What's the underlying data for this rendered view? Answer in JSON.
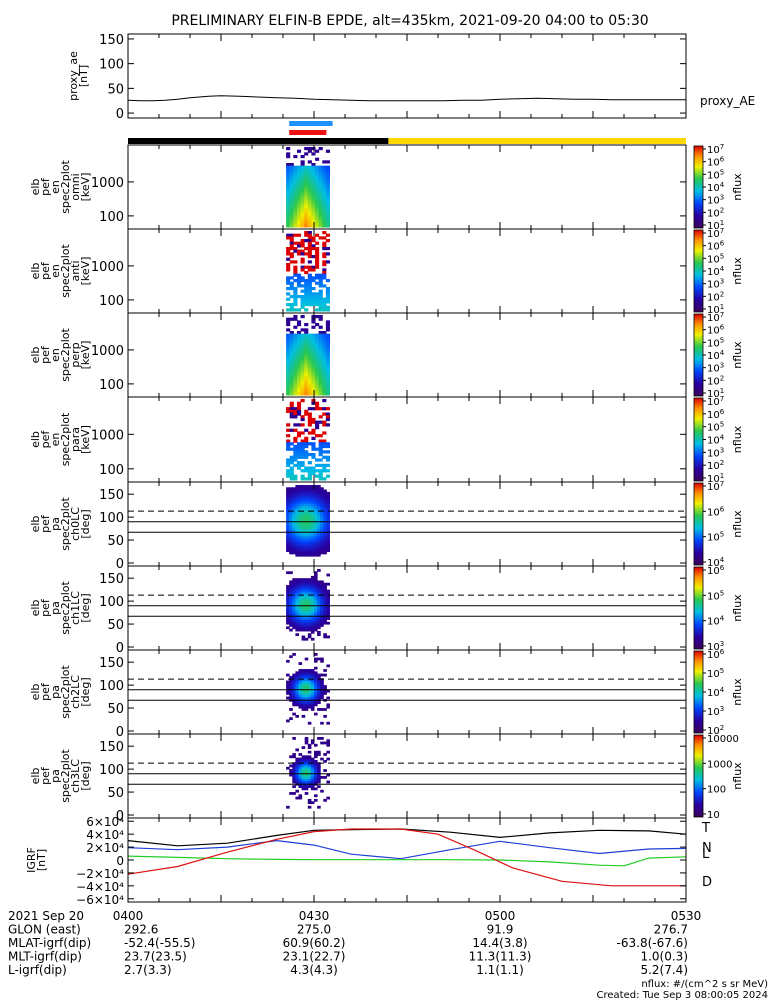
{
  "title": "PRELIMINARY ELFIN-B EPDE, alt=435km, 2021-09-20 04:00 to 05:30",
  "time": {
    "start_min": 0,
    "end_min": 90,
    "tick_labels": [
      "0400",
      "0430",
      "0500",
      "0530"
    ],
    "tick_minutes": [
      0,
      30,
      60,
      90
    ],
    "date_label": "2021 Sep 20"
  },
  "panels": [
    {
      "kind": "line",
      "ylabel_lines": [
        "proxy_ae",
        "[nT]"
      ],
      "right_label": "proxy_AE",
      "ylim": [
        -10,
        160
      ],
      "yticks": [
        0,
        50,
        100,
        150
      ],
      "ytick_labels": [
        "0",
        "50",
        "100",
        "150"
      ],
      "series_x": [
        0,
        2,
        4,
        6,
        8,
        10,
        13,
        15,
        18,
        20,
        22,
        24,
        27,
        30,
        33,
        36,
        39,
        42,
        45,
        48,
        51,
        54,
        57,
        60,
        63,
        66,
        69,
        72,
        75,
        78,
        81,
        84,
        87,
        90
      ],
      "series_y": [
        26,
        25,
        25,
        26,
        28,
        31,
        34,
        35,
        34,
        33,
        32,
        31,
        30,
        28,
        27,
        26,
        25,
        25,
        25,
        25,
        25,
        26,
        26,
        28,
        29,
        30,
        29,
        28,
        28,
        27,
        27,
        27,
        27,
        27
      ]
    },
    {
      "kind": "energy",
      "ylabel_lines": [
        "elb",
        "pef",
        "en",
        "spec2plot",
        "omni",
        "[keV]"
      ],
      "yticks": [
        "100",
        "1000"
      ],
      "cbar_labels": [
        "10^1",
        "10^2",
        "10^3",
        "10^4",
        "10^5",
        "10^6",
        "10^7"
      ],
      "cbar_unit": "nflux",
      "intensity": 1.0
    },
    {
      "kind": "energy",
      "ylabel_lines": [
        "elb",
        "pef",
        "en",
        "spec2plot",
        "anti",
        "[keV]"
      ],
      "yticks": [
        "100",
        "1000"
      ],
      "cbar_labels": [
        "10^1",
        "10^2",
        "10^3",
        "10^4",
        "10^5",
        "10^6",
        "10^7"
      ],
      "cbar_unit": "nflux",
      "intensity": 0.45
    },
    {
      "kind": "energy",
      "ylabel_lines": [
        "elb",
        "pef",
        "en",
        "spec2plot",
        "perp",
        "[keV]"
      ],
      "yticks": [
        "100",
        "1000"
      ],
      "cbar_labels": [
        "10^1",
        "10^2",
        "10^3",
        "10^4",
        "10^5",
        "10^6",
        "10^7"
      ],
      "cbar_unit": "nflux",
      "intensity": 1.0
    },
    {
      "kind": "energy",
      "ylabel_lines": [
        "elb",
        "pef",
        "en",
        "spec2plot",
        "para",
        "[keV]"
      ],
      "yticks": [
        "100",
        "1000"
      ],
      "cbar_labels": [
        "10^1",
        "10^2",
        "10^3",
        "10^4",
        "10^5",
        "10^6",
        "10^7"
      ],
      "cbar_unit": "nflux",
      "intensity": 0.45
    },
    {
      "kind": "pitch",
      "ylabel_lines": [
        "elb",
        "pef",
        "pa",
        "spec2plot",
        "ch0LC",
        "[deg]"
      ],
      "yticks": [
        "0",
        "50",
        "100",
        "150"
      ],
      "cbar_labels": [
        "10^4",
        "10^5",
        "10^6",
        "10^7"
      ],
      "cbar_unit": "nflux",
      "spread": 1.0
    },
    {
      "kind": "pitch",
      "ylabel_lines": [
        "elb",
        "pef",
        "pa",
        "spec2plot",
        "ch1LC",
        "[deg]"
      ],
      "yticks": [
        "0",
        "50",
        "100",
        "150"
      ],
      "cbar_labels": [
        "10^3",
        "10^4",
        "10^5",
        "10^6"
      ],
      "cbar_unit": "nflux",
      "spread": 0.75
    },
    {
      "kind": "pitch",
      "ylabel_lines": [
        "elb",
        "pef",
        "pa",
        "spec2plot",
        "ch2LC",
        "[deg]"
      ],
      "yticks": [
        "0",
        "50",
        "100",
        "150"
      ],
      "cbar_labels": [
        "10^2",
        "10^3",
        "10^4",
        "10^5",
        "10^6"
      ],
      "cbar_unit": "nflux",
      "spread": 0.55
    },
    {
      "kind": "pitch",
      "ylabel_lines": [
        "elb",
        "pef",
        "pa",
        "spec2plot",
        "ch3LC",
        "[deg]"
      ],
      "yticks": [
        "0",
        "50",
        "100",
        "150"
      ],
      "cbar_labels": [
        "10",
        "100",
        "1000",
        "10000"
      ],
      "cbar_unit": "nflux",
      "spread": 0.45
    },
    {
      "kind": "igrf",
      "ylabel_lines": [
        "IGRF",
        "[nT]"
      ],
      "ylim": [
        -65000,
        65000
      ],
      "yticks": [
        -60000,
        -40000,
        -20000,
        0,
        20000,
        40000,
        60000
      ],
      "ytick_labels": [
        "−6×10⁴",
        "−4×10⁴",
        "−2×10⁴",
        "0",
        "2×10⁴",
        "4×10⁴",
        "6×10⁴"
      ],
      "series": [
        {
          "name": "T",
          "color": "#000000",
          "x": [
            0,
            8,
            16,
            24,
            30,
            36,
            44,
            52,
            60,
            68,
            76,
            84,
            90
          ],
          "y": [
            30000,
            22000,
            26000,
            38000,
            46000,
            47000,
            48000,
            43000,
            35000,
            42000,
            46000,
            45000,
            40000
          ]
        },
        {
          "name": "N",
          "color": "#1f3fd6",
          "x": [
            0,
            8,
            16,
            24,
            30,
            36,
            44,
            52,
            60,
            68,
            76,
            84,
            90
          ],
          "y": [
            19000,
            16000,
            20000,
            30000,
            23000,
            9000,
            2000,
            16000,
            29000,
            19000,
            10000,
            17000,
            18000
          ]
        },
        {
          "name": "L",
          "color": "#22cc22",
          "x": [
            0,
            8,
            16,
            24,
            30,
            36,
            44,
            52,
            60,
            68,
            76,
            80,
            84,
            90
          ],
          "y": [
            6000,
            4000,
            2000,
            1000,
            500,
            500,
            500,
            500,
            0,
            -3000,
            -8000,
            -9000,
            3000,
            5000
          ]
        },
        {
          "name": "D",
          "color": "#dd1111",
          "x": [
            0,
            8,
            16,
            24,
            30,
            36,
            44,
            50,
            56,
            62,
            70,
            78,
            84,
            90
          ],
          "y": [
            -22000,
            -10000,
            12000,
            32000,
            44000,
            48000,
            48000,
            40000,
            15000,
            -12000,
            -33000,
            -40000,
            -40000,
            -40000
          ]
        }
      ]
    }
  ],
  "orbit_bars": {
    "black_until_min": 30,
    "color_black": "#000000",
    "color_yellow": "#ffd700",
    "blue_range_min": [
      26,
      33
    ],
    "red_range_min": [
      26,
      32
    ],
    "color_blue": "#1e90ff",
    "color_red": "#ee1111"
  },
  "science_zone_min": [
    25.5,
    32.5
  ],
  "ephemeris": {
    "row_labels": [
      "2021 Sep 20",
      "GLON (east)",
      "MLAT-igrf(dip)",
      "MLT-igrf(dip)",
      "L-igrf(dip)"
    ],
    "columns": [
      {
        "time": "0400",
        "values": [
          "292.6",
          "-52.4(-55.5)",
          "23.7(23.5)",
          "2.7(3.3)"
        ]
      },
      {
        "time": "0430",
        "values": [
          "275.0",
          "60.9(60.2)",
          "23.1(22.7)",
          "4.3(4.3)"
        ]
      },
      {
        "time": "0500",
        "values": [
          "91.9",
          "14.4(3.8)",
          "11.3(11.3)",
          "1.1(1.1)"
        ]
      },
      {
        "time": "0530",
        "values": [
          "276.7",
          "-63.8(-67.6)",
          "1.0(0.3)",
          "5.2(7.4)"
        ]
      }
    ]
  },
  "footer": {
    "units_note": "nflux: #/(cm^2 s sr MeV)",
    "created": "Created: Tue Sep  3 08:00:05 2024"
  }
}
